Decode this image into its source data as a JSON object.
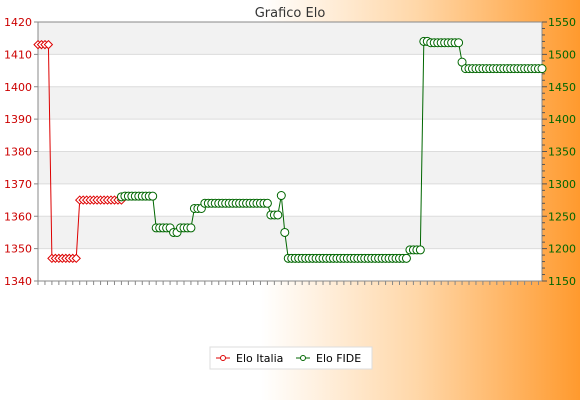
{
  "chart_data": {
    "type": "line",
    "title": "Grafico Elo",
    "y_left": {
      "min": 1340,
      "max": 1420,
      "step": 10,
      "color": "#cc0000"
    },
    "y_right": {
      "min": 1150,
      "max": 1550,
      "step": 50,
      "color": "#006600"
    },
    "grid": true,
    "legend_placement": "bottom-center",
    "x_tick_labels_note": "rotated date labels, illegible in screenshot",
    "series": [
      {
        "name": "Elo Italia",
        "axis": "left",
        "color": "#dd0000",
        "values": [
          1413,
          1413,
          1413,
          1413,
          1347,
          1347,
          1347,
          1347,
          1347,
          1347,
          1347,
          1347,
          1365,
          1365,
          1365,
          1365,
          1365,
          1365,
          1365,
          1365,
          1365,
          1365,
          1365,
          1365,
          1365
        ]
      },
      {
        "name": "Elo FIDE",
        "axis": "right",
        "color": "#006600",
        "start_index": 24,
        "values": [
          1280,
          1281,
          1281,
          1281,
          1281,
          1281,
          1281,
          1281,
          1281,
          1281,
          1232,
          1232,
          1232,
          1232,
          1232,
          1225,
          1225,
          1232,
          1232,
          1232,
          1232,
          1262,
          1262,
          1262,
          1270,
          1270,
          1270,
          1270,
          1270,
          1270,
          1270,
          1270,
          1270,
          1270,
          1270,
          1270,
          1270,
          1270,
          1270,
          1270,
          1270,
          1270,
          1270,
          1252,
          1252,
          1252,
          1282,
          1225,
          1185,
          1185,
          1185,
          1185,
          1185,
          1185,
          1185,
          1185,
          1185,
          1185,
          1185,
          1185,
          1185,
          1185,
          1185,
          1185,
          1185,
          1185,
          1185,
          1185,
          1185,
          1185,
          1185,
          1185,
          1185,
          1185,
          1185,
          1185,
          1185,
          1185,
          1185,
          1185,
          1185,
          1185,
          1185,
          1198,
          1198,
          1198,
          1198,
          1520,
          1520,
          1518,
          1518,
          1518,
          1518,
          1518,
          1518,
          1518,
          1518,
          1518,
          1488,
          1478,
          1478,
          1478,
          1478,
          1478,
          1478,
          1478,
          1478,
          1478,
          1478,
          1478,
          1478,
          1478,
          1478,
          1478,
          1478,
          1478,
          1478,
          1478,
          1478,
          1478,
          1478,
          1478
        ]
      }
    ]
  }
}
